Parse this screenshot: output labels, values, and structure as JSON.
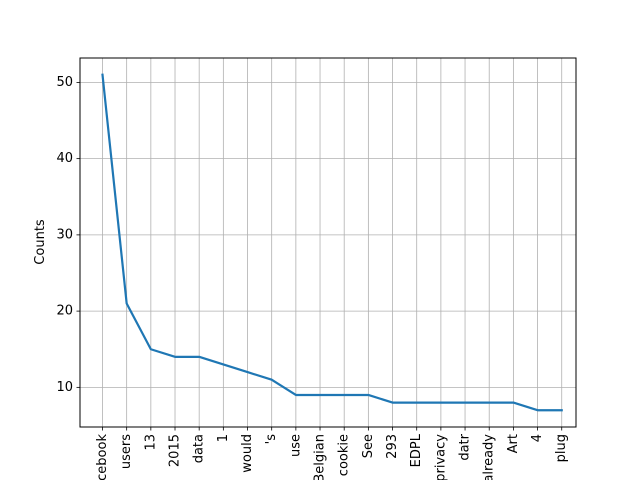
{
  "chart_data": {
    "type": "line",
    "categories": [
      "Facebook",
      "users",
      "13",
      "2015",
      "data",
      "1",
      "would",
      "'s",
      "use",
      "Belgian",
      "cookie",
      "See",
      "293",
      "EDPL",
      "privacy",
      "datr",
      "already",
      "Art",
      "4",
      "plug"
    ],
    "series": [
      {
        "values": [
          51,
          21,
          15,
          14,
          14,
          13,
          12,
          11,
          9,
          9,
          9,
          9,
          8,
          8,
          8,
          8,
          8,
          8,
          7,
          7
        ]
      }
    ],
    "title": "",
    "xlabel": "",
    "ylabel": "Counts",
    "ylim": [
      4.8,
      53.2
    ],
    "yticks": [
      10,
      20,
      30,
      40,
      50
    ],
    "grid": true,
    "line_color": "#1f77b4"
  }
}
